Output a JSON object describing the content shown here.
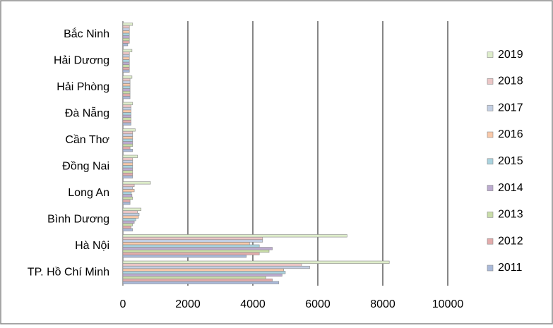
{
  "chart_data": {
    "type": "bar",
    "orientation": "horizontal",
    "categories": [
      "TP. Hồ Chí Minh",
      "Hà Nội",
      "Bình Dương",
      "Long An",
      "Đồng Nai",
      "Cần Thơ",
      "Đà Nẵng",
      "Hải Phòng",
      "Hải Dương",
      "Bắc Ninh"
    ],
    "series": [
      {
        "name": "2011",
        "color": "#a9b9d9",
        "values": [
          4800,
          3800,
          300,
          220,
          300,
          300,
          250,
          220,
          200,
          150
        ]
      },
      {
        "name": "2012",
        "color": "#e3abab",
        "values": [
          4600,
          4200,
          250,
          220,
          300,
          220,
          250,
          220,
          200,
          200
        ]
      },
      {
        "name": "2013",
        "color": "#c9dda9",
        "values": [
          4400,
          4500,
          300,
          300,
          300,
          300,
          250,
          220,
          200,
          200
        ]
      },
      {
        "name": "2014",
        "color": "#bcabd0",
        "values": [
          4900,
          4600,
          350,
          280,
          300,
          300,
          250,
          220,
          200,
          200
        ]
      },
      {
        "name": "2015",
        "color": "#a9d3df",
        "values": [
          5000,
          4200,
          400,
          260,
          300,
          300,
          250,
          220,
          200,
          200
        ]
      },
      {
        "name": "2016",
        "color": "#f9c9a9",
        "values": [
          4950,
          3900,
          480,
          350,
          300,
          300,
          250,
          220,
          200,
          200
        ]
      },
      {
        "name": "2017",
        "color": "#c3cfe3",
        "values": [
          5750,
          4300,
          500,
          300,
          300,
          300,
          250,
          220,
          200,
          200
        ]
      },
      {
        "name": "2018",
        "color": "#ebc6c6",
        "values": [
          5500,
          4300,
          450,
          350,
          300,
          300,
          250,
          220,
          200,
          200
        ]
      },
      {
        "name": "2019",
        "color": "#deedcb",
        "values": [
          8200,
          6900,
          560,
          850,
          450,
          380,
          300,
          280,
          280,
          300
        ]
      }
    ],
    "xlim": [
      0,
      10000
    ],
    "xticks": [
      0,
      2000,
      4000,
      6000,
      8000,
      10000
    ],
    "grid": true,
    "legend": "right"
  }
}
